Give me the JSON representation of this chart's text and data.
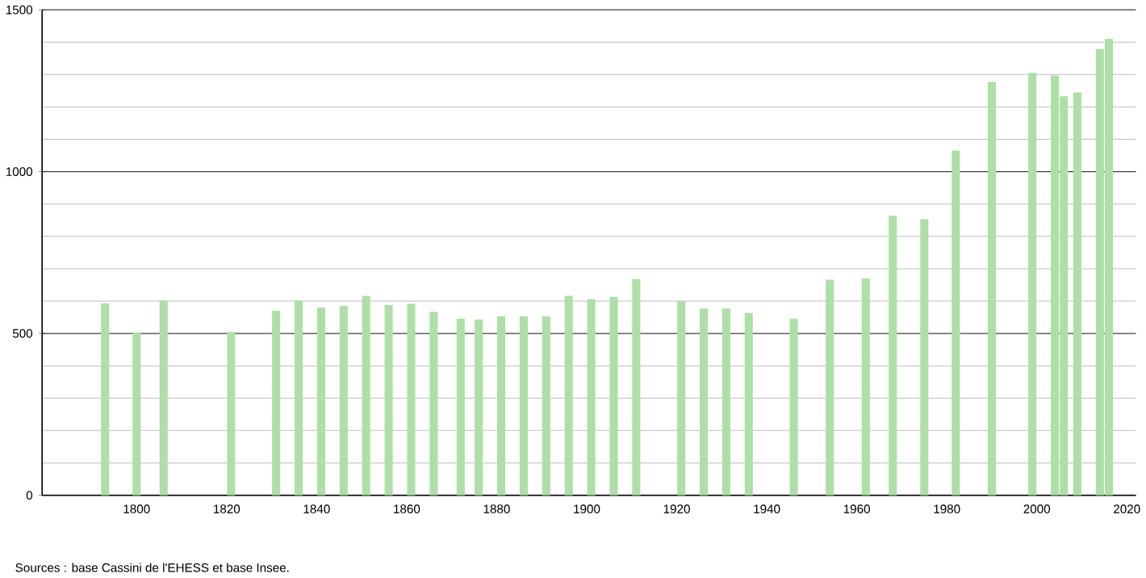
{
  "chart_data": {
    "type": "bar",
    "color": "#addfa6",
    "x": [
      1793,
      1800,
      1806,
      1821,
      1831,
      1836,
      1841,
      1846,
      1851,
      1856,
      1861,
      1866,
      1872,
      1876,
      1881,
      1886,
      1891,
      1896,
      1901,
      1906,
      1911,
      1921,
      1926,
      1931,
      1936,
      1946,
      1954,
      1962,
      1968,
      1975,
      1982,
      1990,
      1999,
      2004,
      2006,
      2009,
      2014,
      2016
    ],
    "values": [
      593,
      502,
      602,
      505,
      570,
      602,
      580,
      585,
      616,
      588,
      592,
      567,
      546,
      543,
      553,
      553,
      553,
      616,
      606,
      613,
      668,
      600,
      577,
      577,
      563,
      546,
      666,
      670,
      864,
      853,
      1065,
      1277,
      1305,
      1297,
      1233,
      1245,
      1379,
      1410
    ],
    "xlim": [
      1779,
      2022
    ],
    "ylim": [
      0,
      1500
    ],
    "xticks": [
      1800,
      1820,
      1840,
      1860,
      1880,
      1900,
      1920,
      1940,
      1960,
      1980,
      2000,
      2020
    ],
    "yticks": [
      0,
      500,
      1000,
      1500
    ],
    "grid": "y",
    "annotations": [
      "Sources : base Cassini de l'EHESS et base Insee."
    ]
  }
}
